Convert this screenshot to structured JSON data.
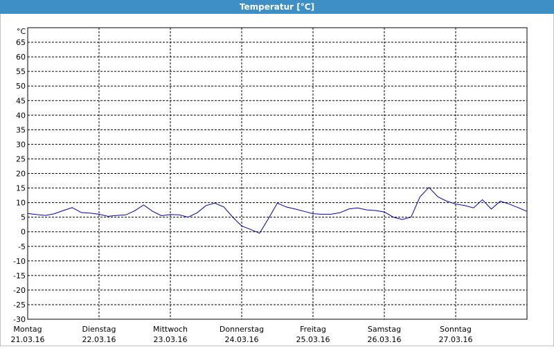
{
  "chart_data": {
    "type": "line",
    "title": "Temperatur [°C]",
    "y_unit": "°C",
    "xlim": [
      0,
      7
    ],
    "ylim": [
      -30,
      70
    ],
    "yticks": [
      -30,
      -25,
      -20,
      -15,
      -10,
      -5,
      0,
      5,
      10,
      15,
      20,
      25,
      30,
      35,
      40,
      45,
      50,
      55,
      60,
      65
    ],
    "xticks": [
      {
        "value": 0,
        "label": "Montag",
        "date": "21.03.16"
      },
      {
        "value": 1,
        "label": "Dienstag",
        "date": "22.03.16"
      },
      {
        "value": 2,
        "label": "Mittwoch",
        "date": "23.03.16"
      },
      {
        "value": 3,
        "label": "Donnerstag",
        "date": "24.03.16"
      },
      {
        "value": 4,
        "label": "Freitag",
        "date": "25.03.16"
      },
      {
        "value": 5,
        "label": "Samstag",
        "date": "26.03.16"
      },
      {
        "value": 6,
        "label": "Sonntag",
        "date": "27.03.16"
      }
    ],
    "grid": true,
    "series": [
      {
        "color": "#0000a8",
        "x": [
          0,
          0.125,
          0.25,
          0.375,
          0.5,
          0.625,
          0.75,
          0.875,
          1,
          1.125,
          1.25,
          1.375,
          1.5,
          1.625,
          1.75,
          1.875,
          2,
          2.125,
          2.25,
          2.375,
          2.5,
          2.625,
          2.75,
          2.875,
          3,
          3.125,
          3.25,
          3.375,
          3.5,
          3.625,
          3.75,
          3.875,
          4,
          4.125,
          4.25,
          4.375,
          4.5,
          4.625,
          4.75,
          4.875,
          5,
          5.125,
          5.25,
          5.375,
          5.5,
          5.625,
          5.75,
          5.875,
          6,
          6.125,
          6.25,
          6.375,
          6.5,
          6.625,
          6.75,
          6.875,
          7
        ],
        "values": [
          6.3,
          5.9,
          5.6,
          6.2,
          7.3,
          8.3,
          6.6,
          6.4,
          6.0,
          5.3,
          5.6,
          5.8,
          7.2,
          9.2,
          7.0,
          5.5,
          5.9,
          5.8,
          5.0,
          6.5,
          9.0,
          9.8,
          8.5,
          5.0,
          2.0,
          0.8,
          -0.5,
          4.5,
          9.8,
          8.5,
          7.8,
          7.0,
          6.2,
          6.0,
          6.0,
          6.5,
          7.8,
          8.2,
          7.5,
          7.3,
          6.8,
          5.0,
          4.2,
          5.0,
          12.0,
          15.2,
          12.0,
          10.5,
          9.5,
          9.0,
          8.2,
          11.0,
          7.8,
          10.5,
          9.5,
          8.3,
          7.0
        ]
      }
    ]
  }
}
